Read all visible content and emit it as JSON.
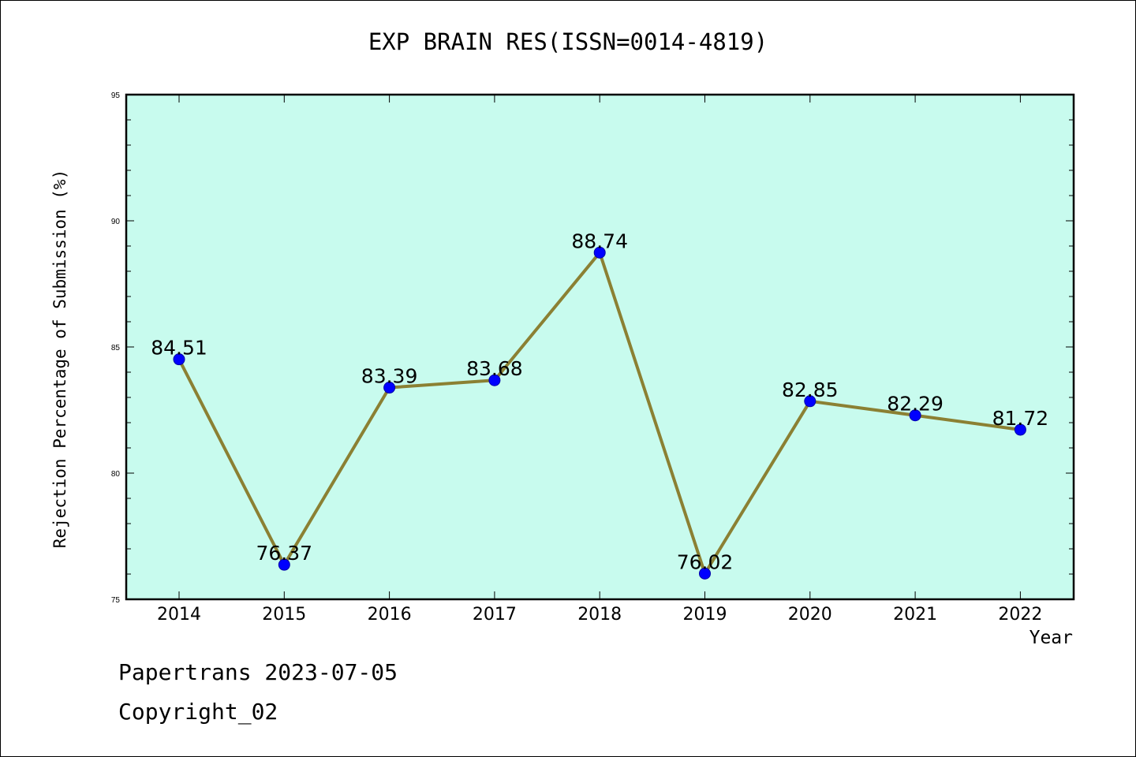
{
  "chart_data": {
    "type": "line",
    "title": "EXP BRAIN RES(ISSN=0014-4819)",
    "xlabel": "Year",
    "ylabel": "Rejection Percentage of Submission (%)",
    "categories": [
      "2014",
      "2015",
      "2016",
      "2017",
      "2018",
      "2019",
      "2020",
      "2021",
      "2022"
    ],
    "series": [
      {
        "values": [
          84.51,
          76.37,
          83.39,
          83.68,
          88.74,
          76.02,
          82.85,
          82.29,
          81.72
        ],
        "data_labels": [
          "84.51",
          "76.37",
          "83.39",
          "83.68",
          "88.74",
          "76.02",
          "82.85",
          "82.29",
          "81.72"
        ]
      }
    ],
    "ylim": [
      75,
      95
    ],
    "yticks": [
      "75",
      "80",
      "85",
      "90",
      "95"
    ],
    "grid": false,
    "plot_background": "#c8fbee",
    "line_color": "#8b8033",
    "marker_color": "#0000ff"
  },
  "footer": {
    "line1": "Papertrans 2023-07-05",
    "line2": "Copyright_02"
  }
}
